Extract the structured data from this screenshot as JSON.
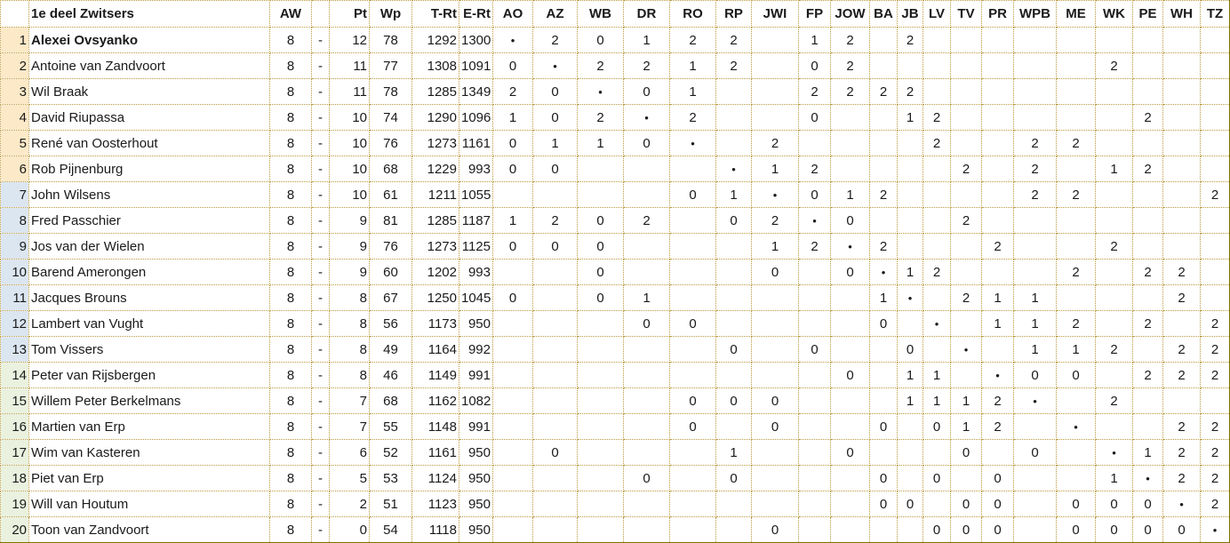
{
  "table": {
    "title": "1e deel Zwitsers",
    "dash": "-",
    "diagonal_marker": "•",
    "stat_headers": [
      "AW",
      "",
      "Pt",
      "Wp",
      "T-Rt",
      "E-Rt"
    ],
    "opponent_headers": [
      "AO",
      "AZ",
      "WB",
      "DR",
      "RO",
      "RP",
      "JWI",
      "FP",
      "JOW",
      "BA",
      "JB",
      "LV",
      "TV",
      "PR",
      "WPB",
      "ME",
      "WK",
      "PE",
      "WH",
      "TZ"
    ],
    "rows": [
      {
        "rank": "1",
        "name": "Alexei Ovsyanko",
        "bold": true,
        "group": "top",
        "aw": "8",
        "pt": "12",
        "wp": "78",
        "t_rt": "1292",
        "e_rt": "1300",
        "results": [
          "•",
          "2",
          "0",
          "1",
          "2",
          "2",
          "",
          "1",
          "2",
          "",
          "2",
          "",
          "",
          "",
          "",
          "",
          "",
          "",
          "",
          ""
        ]
      },
      {
        "rank": "2",
        "name": "Antoine van Zandvoort",
        "bold": false,
        "group": "top",
        "aw": "8",
        "pt": "11",
        "wp": "77",
        "t_rt": "1308",
        "e_rt": "1091",
        "results": [
          "0",
          "•",
          "2",
          "2",
          "1",
          "2",
          "",
          "0",
          "2",
          "",
          "",
          "",
          "",
          "",
          "",
          "",
          "2",
          "",
          "",
          ""
        ]
      },
      {
        "rank": "3",
        "name": "Wil Braak",
        "bold": false,
        "group": "top",
        "aw": "8",
        "pt": "11",
        "wp": "78",
        "t_rt": "1285",
        "e_rt": "1349",
        "results": [
          "2",
          "0",
          "•",
          "0",
          "1",
          "",
          "",
          "2",
          "2",
          "2",
          "2",
          "",
          "",
          "",
          "",
          "",
          "",
          "",
          "",
          ""
        ]
      },
      {
        "rank": "4",
        "name": "David Riupassa",
        "bold": false,
        "group": "top",
        "aw": "8",
        "pt": "10",
        "wp": "74",
        "t_rt": "1290",
        "e_rt": "1096",
        "results": [
          "1",
          "0",
          "2",
          "•",
          "2",
          "",
          "",
          "0",
          "",
          "",
          "1",
          "2",
          "",
          "",
          "",
          "",
          "",
          "2",
          "",
          ""
        ]
      },
      {
        "rank": "5",
        "name": "René van Oosterhout",
        "bold": false,
        "group": "top",
        "aw": "8",
        "pt": "10",
        "wp": "76",
        "t_rt": "1273",
        "e_rt": "1161",
        "results": [
          "0",
          "1",
          "1",
          "0",
          "•",
          "",
          "2",
          "",
          "",
          "",
          "",
          "2",
          "",
          "",
          "2",
          "2",
          "",
          "",
          "",
          ""
        ]
      },
      {
        "rank": "6",
        "name": "Rob Pijnenburg",
        "bold": false,
        "group": "top",
        "aw": "8",
        "pt": "10",
        "wp": "68",
        "t_rt": "1229",
        "e_rt": "993",
        "results": [
          "0",
          "0",
          "",
          "",
          "",
          "•",
          "1",
          "2",
          "",
          "",
          "",
          "",
          "2",
          "",
          "2",
          "",
          "1",
          "2",
          "",
          ""
        ]
      },
      {
        "rank": "7",
        "name": "John Wilsens",
        "bold": false,
        "group": "mid",
        "aw": "8",
        "pt": "10",
        "wp": "61",
        "t_rt": "1211",
        "e_rt": "1055",
        "results": [
          "",
          "",
          "",
          "",
          "0",
          "1",
          "•",
          "0",
          "1",
          "2",
          "",
          "",
          "",
          "",
          "2",
          "2",
          "",
          "",
          "",
          "2"
        ]
      },
      {
        "rank": "8",
        "name": "Fred Passchier",
        "bold": false,
        "group": "mid",
        "aw": "8",
        "pt": "9",
        "wp": "81",
        "t_rt": "1285",
        "e_rt": "1187",
        "results": [
          "1",
          "2",
          "0",
          "2",
          "",
          "0",
          "2",
          "•",
          "0",
          "",
          "",
          "",
          "2",
          "",
          "",
          "",
          "",
          "",
          "",
          ""
        ]
      },
      {
        "rank": "9",
        "name": "Jos van der Wielen",
        "bold": false,
        "group": "mid",
        "aw": "8",
        "pt": "9",
        "wp": "76",
        "t_rt": "1273",
        "e_rt": "1125",
        "results": [
          "0",
          "0",
          "0",
          "",
          "",
          "",
          "1",
          "2",
          "•",
          "2",
          "",
          "",
          "",
          "2",
          "",
          "",
          "2",
          "",
          "",
          ""
        ]
      },
      {
        "rank": "10",
        "name": "Barend Amerongen",
        "bold": false,
        "group": "mid",
        "aw": "8",
        "pt": "9",
        "wp": "60",
        "t_rt": "1202",
        "e_rt": "993",
        "results": [
          "",
          "",
          "0",
          "",
          "",
          "",
          "0",
          "",
          "0",
          "•",
          "1",
          "2",
          "",
          "",
          "",
          "2",
          "",
          "2",
          "2",
          ""
        ]
      },
      {
        "rank": "11",
        "name": "Jacques Brouns",
        "bold": false,
        "group": "mid",
        "aw": "8",
        "pt": "8",
        "wp": "67",
        "t_rt": "1250",
        "e_rt": "1045",
        "results": [
          "0",
          "",
          "0",
          "1",
          "",
          "",
          "",
          "",
          "",
          "1",
          "•",
          "",
          "2",
          "1",
          "1",
          "",
          "",
          "",
          "2",
          ""
        ]
      },
      {
        "rank": "12",
        "name": "Lambert van Vught",
        "bold": false,
        "group": "mid",
        "aw": "8",
        "pt": "8",
        "wp": "56",
        "t_rt": "1173",
        "e_rt": "950",
        "results": [
          "",
          "",
          "",
          "0",
          "0",
          "",
          "",
          "",
          "",
          "0",
          "",
          "•",
          "",
          "1",
          "1",
          "2",
          "",
          "2",
          "",
          "2"
        ]
      },
      {
        "rank": "13",
        "name": "Tom Vissers",
        "bold": false,
        "group": "mid",
        "aw": "8",
        "pt": "8",
        "wp": "49",
        "t_rt": "1164",
        "e_rt": "992",
        "results": [
          "",
          "",
          "",
          "",
          "",
          "0",
          "",
          "0",
          "",
          "",
          "0",
          "",
          "•",
          "",
          "1",
          "1",
          "2",
          "",
          "2",
          "2"
        ]
      },
      {
        "rank": "14",
        "name": "Peter van Rijsbergen",
        "bold": false,
        "group": "bot",
        "aw": "8",
        "pt": "8",
        "wp": "46",
        "t_rt": "1149",
        "e_rt": "991",
        "results": [
          "",
          "",
          "",
          "",
          "",
          "",
          "",
          "",
          "0",
          "",
          "1",
          "1",
          "",
          "•",
          "0",
          "0",
          "",
          "2",
          "2",
          "2"
        ]
      },
      {
        "rank": "15",
        "name": "Willem Peter Berkelmans",
        "bold": false,
        "group": "bot",
        "aw": "8",
        "pt": "7",
        "wp": "68",
        "t_rt": "1162",
        "e_rt": "1082",
        "results": [
          "",
          "",
          "",
          "",
          "0",
          "0",
          "0",
          "",
          "",
          "",
          "1",
          "1",
          "1",
          "2",
          "•",
          "",
          "2",
          "",
          "",
          ""
        ]
      },
      {
        "rank": "16",
        "name": "Martien van Erp",
        "bold": false,
        "group": "bot",
        "aw": "8",
        "pt": "7",
        "wp": "55",
        "t_rt": "1148",
        "e_rt": "991",
        "results": [
          "",
          "",
          "",
          "",
          "0",
          "",
          "0",
          "",
          "",
          "0",
          "",
          "0",
          "1",
          "2",
          "",
          "•",
          "",
          "",
          "2",
          "2"
        ]
      },
      {
        "rank": "17",
        "name": "Wim van Kasteren",
        "bold": false,
        "group": "bot",
        "aw": "8",
        "pt": "6",
        "wp": "52",
        "t_rt": "1161",
        "e_rt": "950",
        "results": [
          "",
          "0",
          "",
          "",
          "",
          "1",
          "",
          "",
          "0",
          "",
          "",
          "",
          "0",
          "",
          "0",
          "",
          "•",
          "1",
          "2",
          "2"
        ]
      },
      {
        "rank": "18",
        "name": "Piet van Erp",
        "bold": false,
        "group": "bot",
        "aw": "8",
        "pt": "5",
        "wp": "53",
        "t_rt": "1124",
        "e_rt": "950",
        "results": [
          "",
          "",
          "",
          "0",
          "",
          "0",
          "",
          "",
          "",
          "0",
          "",
          "0",
          "",
          "0",
          "",
          "",
          "1",
          "•",
          "2",
          "2"
        ]
      },
      {
        "rank": "19",
        "name": "Will van Houtum",
        "bold": false,
        "group": "bot",
        "aw": "8",
        "pt": "2",
        "wp": "51",
        "t_rt": "1123",
        "e_rt": "950",
        "results": [
          "",
          "",
          "",
          "",
          "",
          "",
          "",
          "",
          "",
          "0",
          "0",
          "",
          "0",
          "0",
          "",
          "0",
          "0",
          "0",
          "•",
          "2"
        ]
      },
      {
        "rank": "20",
        "name": "Toon van Zandvoort",
        "bold": false,
        "group": "bot",
        "aw": "8",
        "pt": "0",
        "wp": "54",
        "t_rt": "1118",
        "e_rt": "950",
        "results": [
          "",
          "",
          "",
          "",
          "",
          "",
          "0",
          "",
          "",
          "",
          "",
          "0",
          "0",
          "0",
          "",
          "0",
          "0",
          "0",
          "0",
          "•"
        ]
      }
    ]
  },
  "colors": {
    "rank_top": "#fce9c8",
    "rank_mid": "#dce6f1",
    "rank_bottom": "#eaf1df",
    "gridline": "#b9993e",
    "border_thick": "#827000",
    "text": "#1a1a1a"
  }
}
